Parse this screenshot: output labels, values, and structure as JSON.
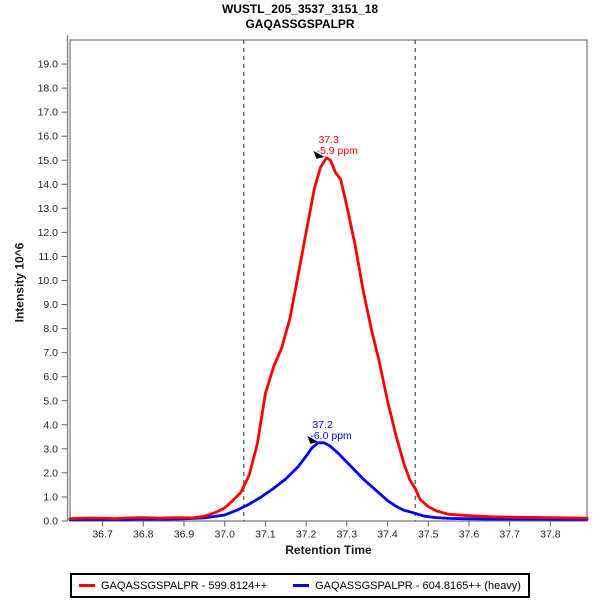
{
  "window": {
    "title": "WUSTL_205_3537_3151_18",
    "subtitle": "GAQASSGSPALPR"
  },
  "chart_data": {
    "type": "line",
    "title": "WUSTL_205_3537_3151_18",
    "subtitle": "GAQASSGSPALPR",
    "xlabel": "Retention Time",
    "ylabel": "Intensity 10^6",
    "xlim": [
      36.62,
      37.89
    ],
    "ylim": [
      0,
      20
    ],
    "x_ticks": [
      36.7,
      36.8,
      36.9,
      37.0,
      37.1,
      37.2,
      37.3,
      37.4,
      37.5,
      37.6,
      37.7,
      37.8
    ],
    "y_ticks": [
      0,
      1,
      2,
      3,
      4,
      5,
      6,
      7,
      8,
      9,
      10,
      11,
      12,
      13,
      14,
      15,
      16,
      17,
      18,
      19
    ],
    "grid": false,
    "boundaries": [
      37.047,
      37.468
    ],
    "boundary_color": "#4d4d4d",
    "frame_color": "#808080",
    "series": [
      {
        "id": "heavy",
        "name": "GAQASSGSPALPR - 604.8165++ (heavy)",
        "color": "#0000ff",
        "x": [
          36.62,
          36.7,
          36.75,
          36.8,
          36.85,
          36.9,
          36.95,
          37.0,
          37.03,
          37.06,
          37.09,
          37.12,
          37.15,
          37.18,
          37.2,
          37.215,
          37.23,
          37.245,
          37.26,
          37.28,
          37.3,
          37.32,
          37.34,
          37.36,
          37.38,
          37.4,
          37.42,
          37.44,
          37.468,
          37.49,
          37.52,
          37.55,
          37.6,
          37.65,
          37.7,
          37.8,
          37.89
        ],
        "y": [
          0.06,
          0.07,
          0.06,
          0.08,
          0.07,
          0.09,
          0.13,
          0.25,
          0.45,
          0.7,
          1.0,
          1.35,
          1.75,
          2.25,
          2.7,
          3.05,
          3.25,
          3.25,
          3.1,
          2.8,
          2.45,
          2.1,
          1.75,
          1.45,
          1.15,
          0.85,
          0.62,
          0.45,
          0.32,
          0.2,
          0.14,
          0.11,
          0.09,
          0.08,
          0.08,
          0.07,
          0.07
        ]
      },
      {
        "id": "light",
        "name": "GAQASSGSPALPR - 599.8124++",
        "color": "#ff0000",
        "x": [
          36.62,
          36.66,
          36.7,
          36.73,
          36.76,
          36.8,
          36.84,
          36.88,
          36.92,
          36.95,
          36.98,
          37.0,
          37.02,
          37.04,
          37.06,
          37.08,
          37.1,
          37.12,
          37.14,
          37.16,
          37.18,
          37.2,
          37.22,
          37.235,
          37.25,
          37.26,
          37.272,
          37.285,
          37.3,
          37.32,
          37.34,
          37.36,
          37.38,
          37.4,
          37.42,
          37.44,
          37.455,
          37.468,
          37.48,
          37.5,
          37.52,
          37.55,
          37.6,
          37.65,
          37.7,
          37.75,
          37.8,
          37.85,
          37.89
        ],
        "y": [
          0.1,
          0.12,
          0.12,
          0.1,
          0.13,
          0.14,
          0.12,
          0.14,
          0.13,
          0.2,
          0.37,
          0.55,
          0.85,
          1.2,
          1.9,
          3.2,
          5.3,
          6.4,
          7.2,
          8.4,
          10.2,
          12.0,
          13.8,
          14.7,
          15.1,
          15.0,
          14.5,
          14.2,
          13.1,
          11.5,
          9.6,
          8.0,
          6.6,
          5.0,
          3.6,
          2.4,
          1.7,
          1.35,
          0.9,
          0.6,
          0.42,
          0.28,
          0.22,
          0.18,
          0.16,
          0.15,
          0.14,
          0.13,
          0.12
        ]
      }
    ],
    "annotations": [
      {
        "series": "light",
        "color": "#ff0000",
        "x": 37.25,
        "y": 15.1,
        "rt_label": "37.3",
        "ppm_label": "-5.9 ppm"
      },
      {
        "series": "heavy",
        "color": "#0000ff",
        "x": 37.235,
        "y": 3.25,
        "rt_label": "37.2",
        "ppm_label": "-6.0 ppm"
      }
    ],
    "legend": {
      "position": "bottom",
      "entries": [
        "GAQASSGSPALPR - 599.8124++",
        "GAQASSGSPALPR - 604.8165++ (heavy)"
      ]
    }
  }
}
